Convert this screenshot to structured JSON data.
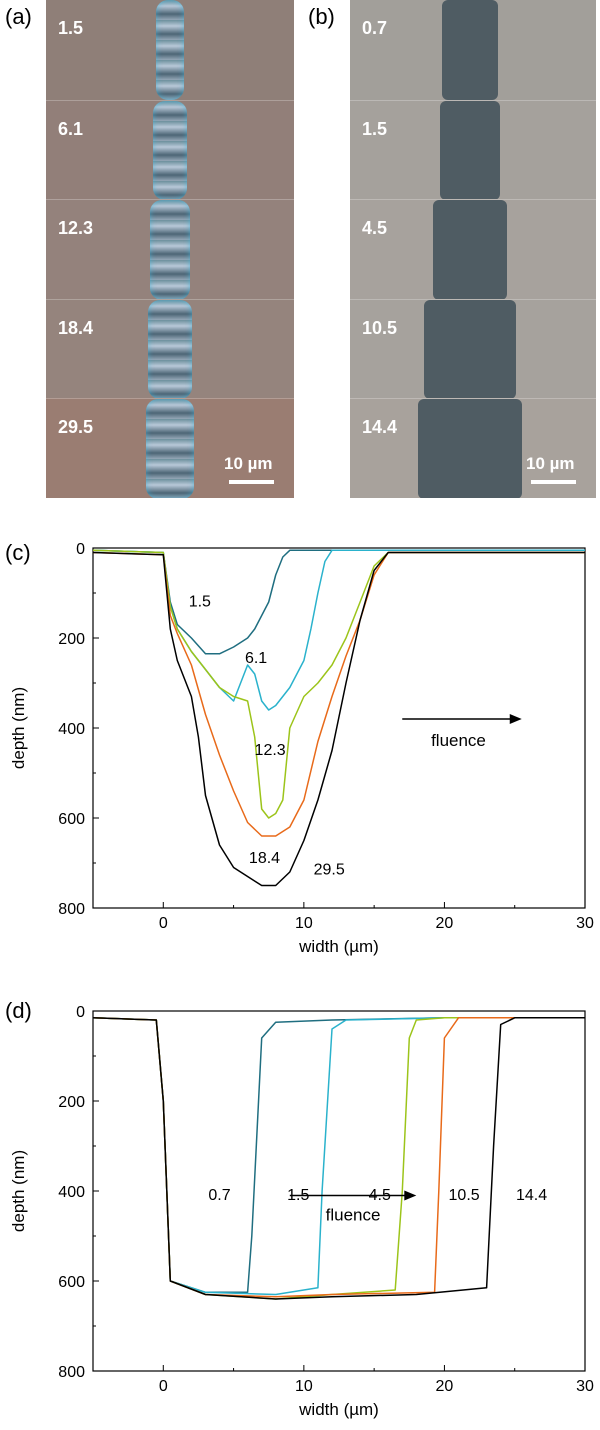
{
  "panels": {
    "a": {
      "label": "(a)",
      "fluences": [
        "1.5",
        "6.1",
        "12.3",
        "18.4",
        "29.5"
      ],
      "scale": "10 µm"
    },
    "b": {
      "label": "(b)",
      "fluences": [
        "0.7",
        "1.5",
        "4.5",
        "10.5",
        "14.4"
      ],
      "scale": "10 µm"
    }
  },
  "chart_data": [
    {
      "panel": "(c)",
      "type": "line",
      "xlabel": "width  (µm)",
      "ylabel": "depth  (nm)",
      "xlim": [
        -5,
        30
      ],
      "ylim": [
        0,
        800
      ],
      "y_inverted": true,
      "xticks": [
        0,
        10,
        20,
        30
      ],
      "yticks": [
        0,
        200,
        400,
        600,
        800
      ],
      "annotation": "fluence",
      "series": [
        {
          "name": "1.5",
          "color": "#1f6e80",
          "x": [
            -5,
            0,
            0.5,
            1,
            2,
            3,
            4,
            5,
            6,
            6.5,
            7,
            7.5,
            8,
            8.5,
            9,
            10,
            12,
            15,
            20,
            25,
            30
          ],
          "y": [
            5,
            10,
            120,
            170,
            200,
            235,
            235,
            220,
            200,
            180,
            150,
            120,
            60,
            20,
            5,
            5,
            5,
            5,
            5,
            5,
            5
          ]
        },
        {
          "name": "6.1",
          "color": "#2ab2cc",
          "x": [
            -5,
            0,
            0.5,
            1,
            2,
            3,
            4,
            5,
            5.5,
            6,
            6.5,
            7,
            7.5,
            8,
            9,
            10,
            10.5,
            11,
            11.5,
            12,
            15,
            20,
            25,
            30
          ],
          "y": [
            5,
            10,
            130,
            180,
            230,
            270,
            310,
            340,
            300,
            260,
            280,
            340,
            360,
            350,
            310,
            250,
            180,
            100,
            30,
            5,
            5,
            5,
            5,
            5
          ]
        },
        {
          "name": "12.3",
          "color": "#9cc41a",
          "x": [
            -5,
            0,
            0.5,
            1,
            2,
            3,
            4,
            5,
            6,
            6.5,
            7,
            7.5,
            8,
            8.5,
            9,
            10,
            11,
            12,
            13,
            14,
            15,
            16,
            20,
            25,
            30
          ],
          "y": [
            5,
            10,
            130,
            180,
            230,
            270,
            310,
            330,
            340,
            420,
            580,
            600,
            590,
            560,
            400,
            330,
            300,
            260,
            200,
            120,
            40,
            10,
            10,
            10,
            10
          ]
        },
        {
          "name": "18.4",
          "color": "#e86a1a",
          "x": [
            -5,
            0,
            0.5,
            1,
            2,
            3,
            4,
            5,
            6,
            7,
            8,
            9,
            10,
            11,
            12,
            13,
            14,
            15,
            16,
            20,
            25,
            30
          ],
          "y": [
            10,
            15,
            150,
            190,
            260,
            370,
            460,
            540,
            610,
            640,
            640,
            620,
            560,
            430,
            330,
            240,
            160,
            60,
            10,
            10,
            10,
            10
          ]
        },
        {
          "name": "29.5",
          "color": "#000000",
          "x": [
            -5,
            0,
            0.5,
            1,
            2,
            2.5,
            3,
            4,
            5,
            6,
            7,
            8,
            9,
            10,
            11,
            12,
            13,
            14,
            15,
            16,
            20,
            25,
            30
          ],
          "y": [
            10,
            15,
            180,
            250,
            330,
            420,
            550,
            660,
            710,
            730,
            750,
            750,
            720,
            650,
            560,
            450,
            300,
            160,
            50,
            10,
            10,
            10,
            10
          ]
        }
      ]
    },
    {
      "panel": "(d)",
      "type": "line",
      "xlabel": "width  (µm)",
      "ylabel": "depth  (nm)",
      "xlim": [
        -5,
        30
      ],
      "ylim": [
        0,
        800
      ],
      "y_inverted": true,
      "xticks": [
        0,
        10,
        20,
        30
      ],
      "yticks": [
        0,
        200,
        400,
        600,
        800
      ],
      "annotation": "fluence",
      "series": [
        {
          "name": "0.7",
          "color": "#1f6e80",
          "x": [
            -5,
            -0.5,
            0,
            0.5,
            3,
            6,
            6.3,
            7,
            8,
            12,
            20,
            30
          ],
          "y": [
            15,
            20,
            200,
            600,
            625,
            625,
            500,
            60,
            25,
            20,
            15,
            15
          ]
        },
        {
          "name": "1.5",
          "color": "#2ab2cc",
          "x": [
            -5,
            -0.5,
            0,
            0.5,
            3,
            8,
            11,
            11.3,
            12,
            13,
            20,
            30
          ],
          "y": [
            15,
            20,
            200,
            600,
            625,
            630,
            615,
            400,
            40,
            20,
            15,
            15
          ]
        },
        {
          "name": "4.5",
          "color": "#9cc41a",
          "x": [
            -5,
            -0.5,
            0,
            0.5,
            3,
            8,
            12,
            16.5,
            17,
            17.5,
            18,
            20,
            30
          ],
          "y": [
            15,
            20,
            200,
            600,
            630,
            640,
            630,
            620,
            400,
            60,
            20,
            15,
            15
          ]
        },
        {
          "name": "10.5",
          "color": "#e86a1a",
          "x": [
            -5,
            -0.5,
            0,
            0.5,
            3,
            8,
            12,
            19.3,
            19.6,
            20,
            21,
            30
          ],
          "y": [
            15,
            20,
            200,
            600,
            630,
            635,
            630,
            625,
            400,
            60,
            15,
            15
          ]
        },
        {
          "name": "14.4",
          "color": "#000000",
          "x": [
            -5,
            -0.5,
            0,
            0.5,
            3,
            8,
            12,
            18,
            23,
            23.5,
            24,
            25,
            30
          ],
          "y": [
            15,
            20,
            200,
            600,
            630,
            640,
            635,
            630,
            615,
            300,
            30,
            15,
            15
          ]
        }
      ]
    }
  ]
}
